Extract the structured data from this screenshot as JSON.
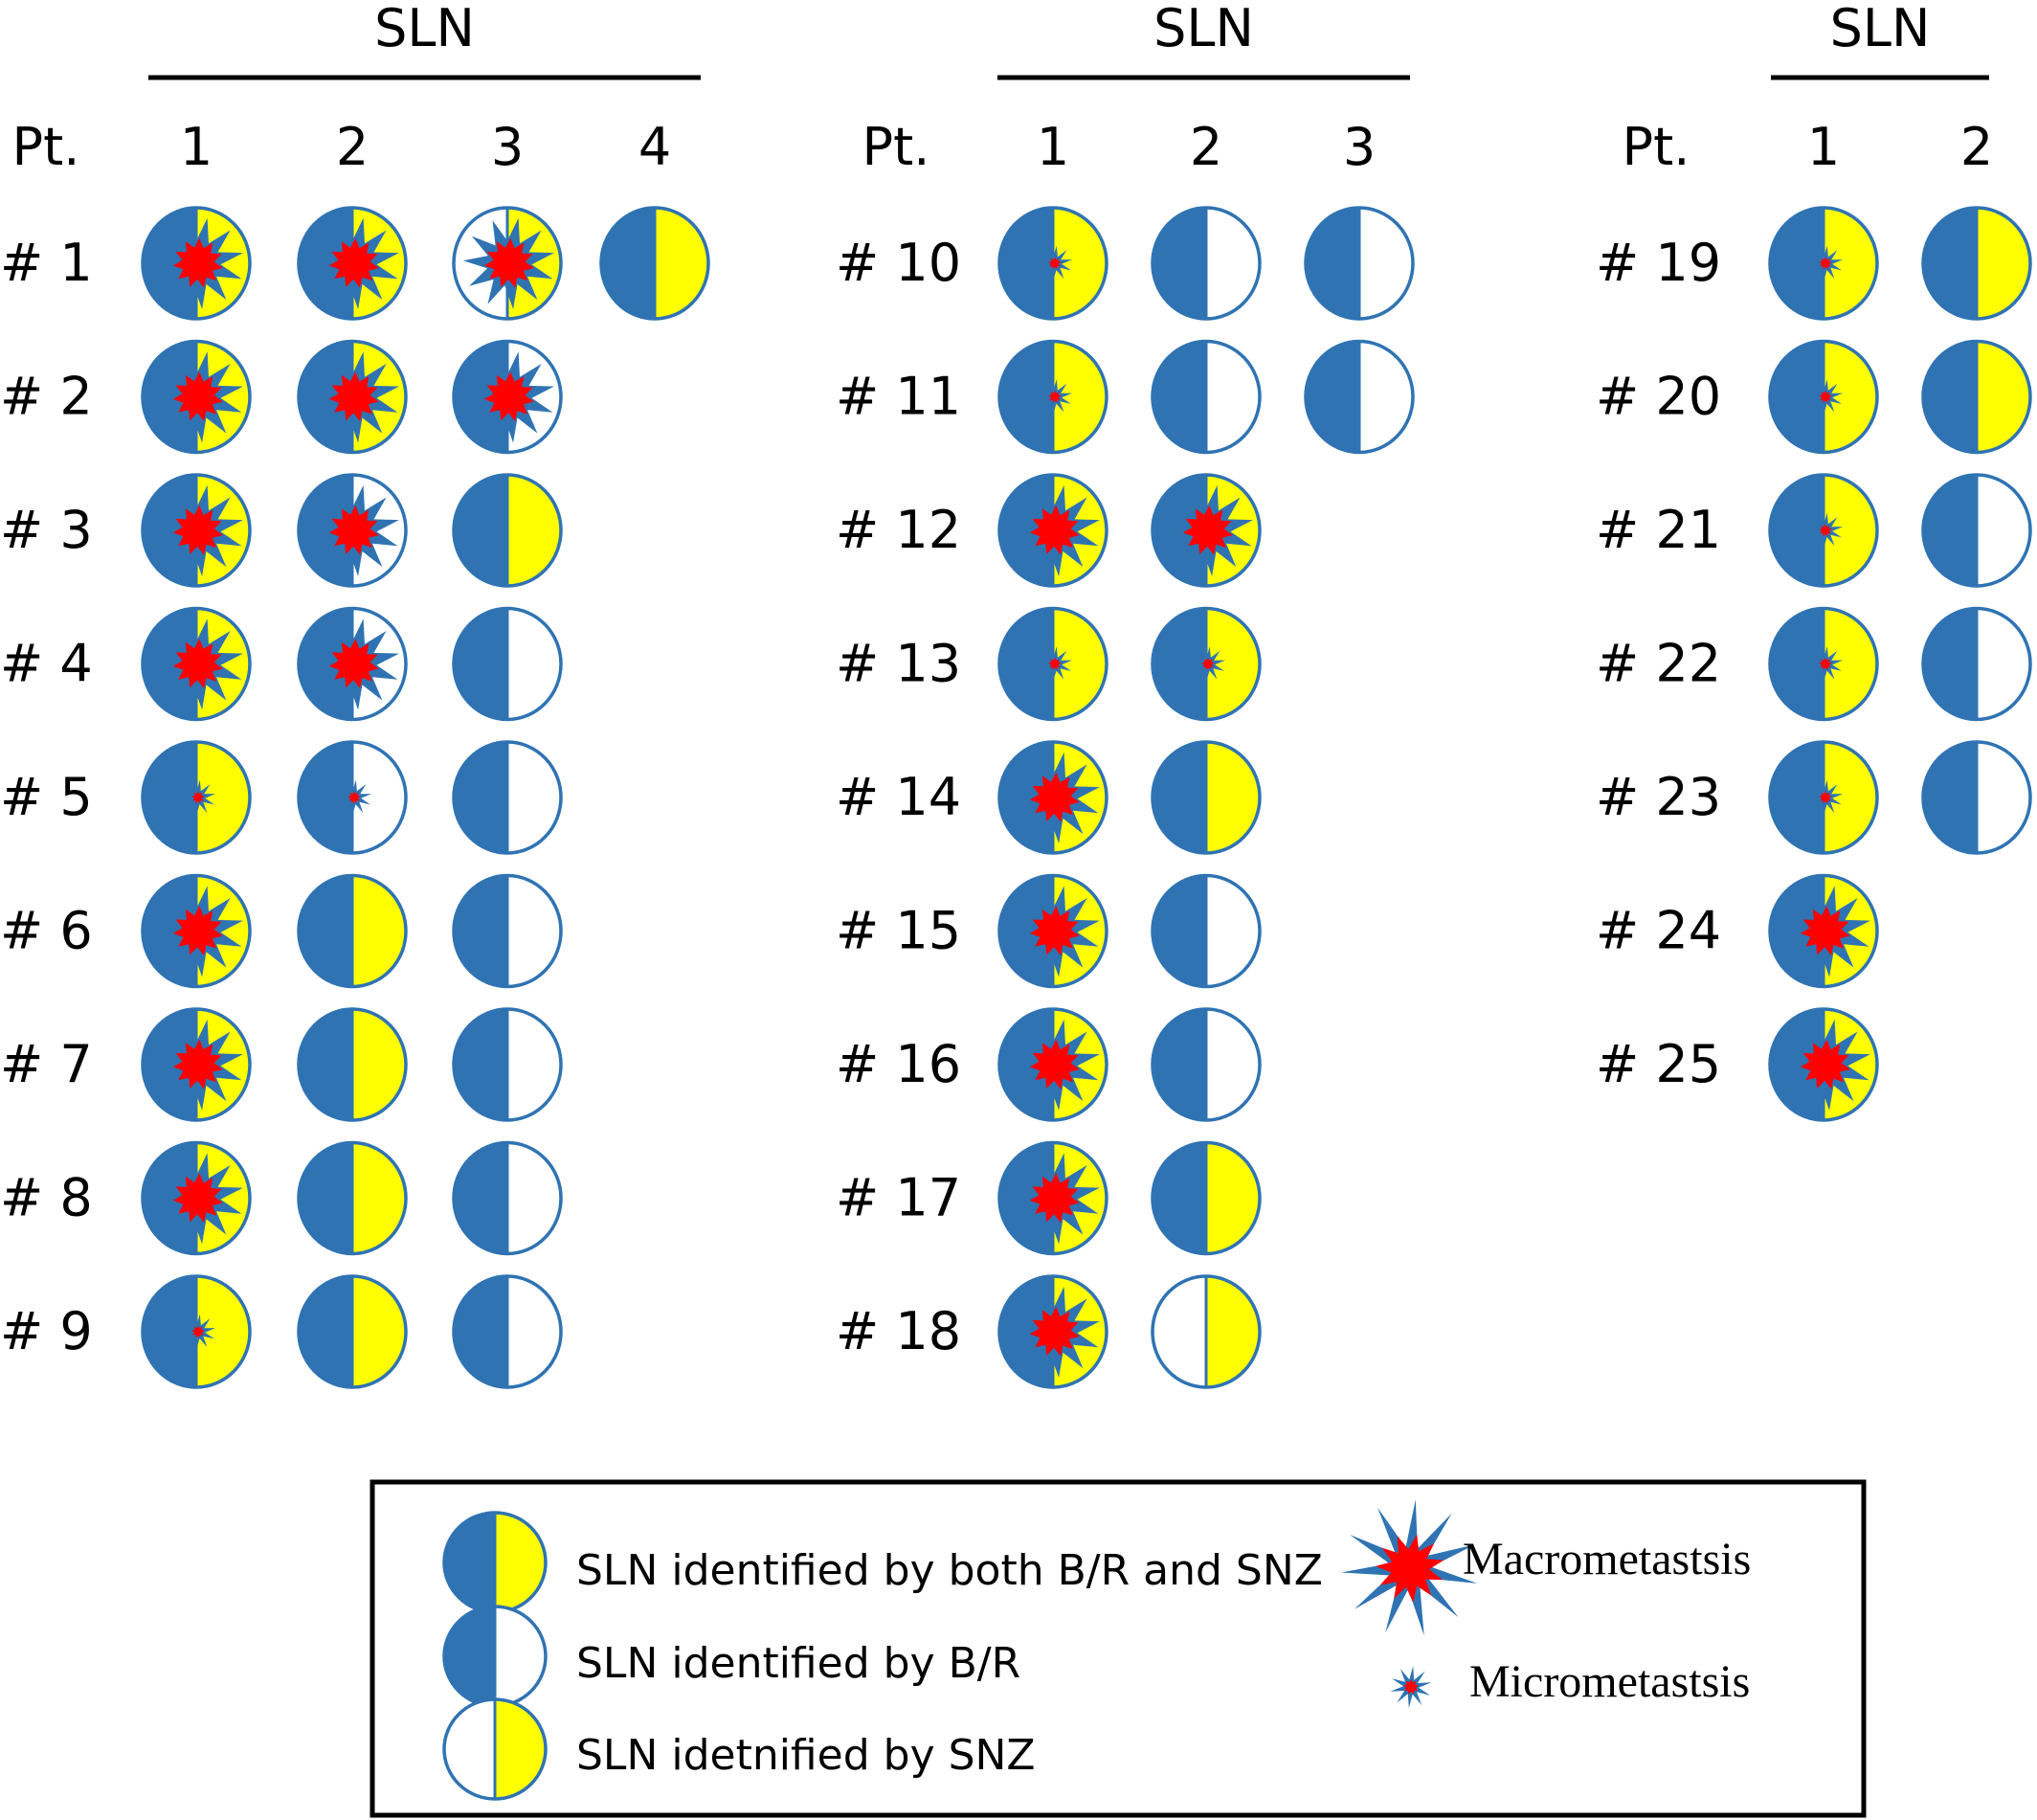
{
  "colors": {
    "blue": "#2f73b3",
    "yellow": "#ffff00",
    "white": "#ffffff",
    "red": "#ff0000",
    "outline": "#2f73b3"
  },
  "header": {
    "sln_label": "SLN",
    "pt_label": "Pt."
  },
  "groups": [
    {
      "sln_numbers": [
        "1",
        "2",
        "3",
        "4"
      ],
      "patients": [
        {
          "label": "# 1",
          "nodes": [
            {
              "id": "both",
              "met": "macro"
            },
            {
              "id": "both",
              "met": "macro"
            },
            {
              "id": "snz",
              "met": "macro"
            },
            {
              "id": "both",
              "met": "none"
            }
          ]
        },
        {
          "label": "# 2",
          "nodes": [
            {
              "id": "both",
              "met": "macro"
            },
            {
              "id": "both",
              "met": "macro"
            },
            {
              "id": "br",
              "met": "macro"
            }
          ]
        },
        {
          "label": "# 3",
          "nodes": [
            {
              "id": "both",
              "met": "macro"
            },
            {
              "id": "br",
              "met": "macro"
            },
            {
              "id": "both",
              "met": "none"
            }
          ]
        },
        {
          "label": "# 4",
          "nodes": [
            {
              "id": "both",
              "met": "macro"
            },
            {
              "id": "br",
              "met": "macro"
            },
            {
              "id": "br",
              "met": "none"
            }
          ]
        },
        {
          "label": "# 5",
          "nodes": [
            {
              "id": "both",
              "met": "micro"
            },
            {
              "id": "br",
              "met": "micro"
            },
            {
              "id": "br",
              "met": "none"
            }
          ]
        },
        {
          "label": "# 6",
          "nodes": [
            {
              "id": "both",
              "met": "macro"
            },
            {
              "id": "both",
              "met": "none"
            },
            {
              "id": "br",
              "met": "none"
            }
          ]
        },
        {
          "label": "# 7",
          "nodes": [
            {
              "id": "both",
              "met": "macro"
            },
            {
              "id": "both",
              "met": "none"
            },
            {
              "id": "br",
              "met": "none"
            }
          ]
        },
        {
          "label": "# 8",
          "nodes": [
            {
              "id": "both",
              "met": "macro"
            },
            {
              "id": "both",
              "met": "none"
            },
            {
              "id": "br",
              "met": "none"
            }
          ]
        },
        {
          "label": "# 9",
          "nodes": [
            {
              "id": "both",
              "met": "micro"
            },
            {
              "id": "both",
              "met": "none"
            },
            {
              "id": "br",
              "met": "none"
            }
          ]
        }
      ]
    },
    {
      "sln_numbers": [
        "1",
        "2",
        "3"
      ],
      "patients": [
        {
          "label": "# 10",
          "nodes": [
            {
              "id": "both",
              "met": "micro"
            },
            {
              "id": "br",
              "met": "none"
            },
            {
              "id": "br",
              "met": "none"
            }
          ]
        },
        {
          "label": "# 11",
          "nodes": [
            {
              "id": "both",
              "met": "micro"
            },
            {
              "id": "br",
              "met": "none"
            },
            {
              "id": "br",
              "met": "none"
            }
          ]
        },
        {
          "label": "# 12",
          "nodes": [
            {
              "id": "both",
              "met": "macro"
            },
            {
              "id": "both",
              "met": "macro"
            }
          ]
        },
        {
          "label": "# 13",
          "nodes": [
            {
              "id": "both",
              "met": "micro"
            },
            {
              "id": "both",
              "met": "micro"
            }
          ]
        },
        {
          "label": "# 14",
          "nodes": [
            {
              "id": "both",
              "met": "macro"
            },
            {
              "id": "both",
              "met": "none"
            }
          ]
        },
        {
          "label": "# 15",
          "nodes": [
            {
              "id": "both",
              "met": "macro"
            },
            {
              "id": "br",
              "met": "none"
            }
          ]
        },
        {
          "label": "# 16",
          "nodes": [
            {
              "id": "both",
              "met": "macro"
            },
            {
              "id": "br",
              "met": "none"
            }
          ]
        },
        {
          "label": "# 17",
          "nodes": [
            {
              "id": "both",
              "met": "macro"
            },
            {
              "id": "both",
              "met": "none"
            }
          ]
        },
        {
          "label": "# 18",
          "nodes": [
            {
              "id": "both",
              "met": "macro"
            },
            {
              "id": "snz",
              "met": "none"
            }
          ]
        }
      ]
    },
    {
      "sln_numbers": [
        "1",
        "2"
      ],
      "patients": [
        {
          "label": "# 19",
          "nodes": [
            {
              "id": "both",
              "met": "micro"
            },
            {
              "id": "both",
              "met": "none"
            }
          ]
        },
        {
          "label": "# 20",
          "nodes": [
            {
              "id": "both",
              "met": "micro"
            },
            {
              "id": "both",
              "met": "none"
            }
          ]
        },
        {
          "label": "# 21",
          "nodes": [
            {
              "id": "both",
              "met": "micro"
            },
            {
              "id": "br",
              "met": "none"
            }
          ]
        },
        {
          "label": "# 22",
          "nodes": [
            {
              "id": "both",
              "met": "micro"
            },
            {
              "id": "br",
              "met": "none"
            }
          ]
        },
        {
          "label": "# 23",
          "nodes": [
            {
              "id": "both",
              "met": "micro"
            },
            {
              "id": "br",
              "met": "none"
            }
          ]
        },
        {
          "label": "# 24",
          "nodes": [
            {
              "id": "both",
              "met": "macro"
            }
          ]
        },
        {
          "label": "# 25",
          "nodes": [
            {
              "id": "both",
              "met": "macro"
            }
          ]
        }
      ]
    }
  ],
  "legend": {
    "both": "SLN identified by both B/R and SNZ",
    "br": "SLN identified by B/R",
    "snz": "SLN idetnified by SNZ",
    "macro": "Macrometastsis",
    "micro": "Micrometastsis"
  }
}
